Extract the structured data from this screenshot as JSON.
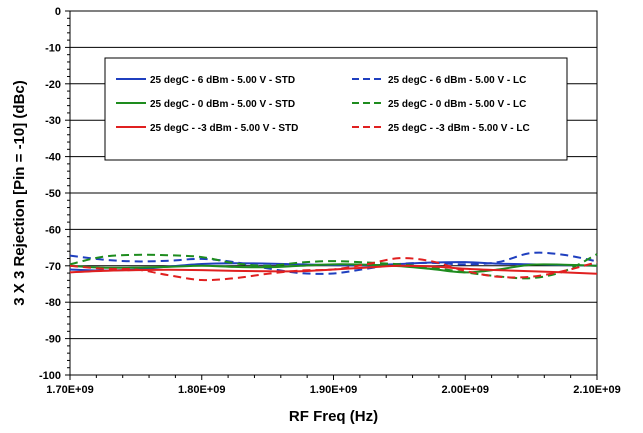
{
  "chart_data": {
    "type": "line",
    "title": "",
    "xlabel": "RF Freq (Hz)",
    "ylabel": "3 X 3 Rejection [Pin = -10] (dBc)",
    "xlim": [
      1700000000,
      2100000000
    ],
    "ylim": [
      -100,
      0
    ],
    "x_ticks": [
      1700000000,
      1800000000,
      1900000000,
      2000000000,
      2100000000
    ],
    "x_tick_labels": [
      "1.70E+09",
      "1.80E+09",
      "1.90E+09",
      "2.00E+09",
      "2.10E+09"
    ],
    "y_ticks": [
      0,
      -10,
      -20,
      -30,
      -40,
      -50,
      -60,
      -70,
      -80,
      -90,
      -100
    ],
    "y_tick_labels": [
      "0",
      "-10",
      "-20",
      "-30",
      "-40",
      "-50",
      "-60",
      "-70",
      "-80",
      "-90",
      "-100"
    ],
    "grid": "horizontal",
    "legend_position": "top",
    "x": [
      1700000000,
      1725000000,
      1750000000,
      1775000000,
      1800000000,
      1825000000,
      1850000000,
      1875000000,
      1900000000,
      1925000000,
      1950000000,
      1975000000,
      2000000000,
      2025000000,
      2050000000,
      2075000000,
      2100000000
    ],
    "series": [
      {
        "name": "25 degC - 6 dBm - 5.00 V - STD",
        "color": "#1f3fbf",
        "dash": "solid",
        "values": [
          -71.0,
          -71.3,
          -71.0,
          -70.2,
          -69.5,
          -69.3,
          -69.4,
          -69.6,
          -69.8,
          -69.9,
          -69.5,
          -69.1,
          -69.0,
          -69.4,
          -69.6,
          -69.8,
          -70.0
        ]
      },
      {
        "name": "25 degC - 6 dBm - 5.00 V - LC",
        "color": "#1f3fbf",
        "dash": "dashed",
        "values": [
          -67.2,
          -68.3,
          -68.8,
          -68.6,
          -68.1,
          -69.0,
          -70.7,
          -72.0,
          -72.1,
          -70.8,
          -69.5,
          -69.2,
          -69.6,
          -69.0,
          -66.5,
          -67.0,
          -68.8
        ]
      },
      {
        "name": "25 degC - 0 dBm - 5.00 V - STD",
        "color": "#1e8c1e",
        "dash": "solid",
        "values": [
          -70.0,
          -70.5,
          -70.5,
          -70.3,
          -70.0,
          -70.3,
          -70.4,
          -70.0,
          -69.6,
          -69.7,
          -70.1,
          -70.9,
          -71.8,
          -71.0,
          -69.7,
          -69.7,
          -70.0
        ]
      },
      {
        "name": "25 degC - 0 dBm - 5.00 V - LC",
        "color": "#1e8c1e",
        "dash": "dashed",
        "values": [
          -69.6,
          -67.5,
          -67.0,
          -67.1,
          -67.6,
          -69.3,
          -70.0,
          -69.1,
          -68.7,
          -69.1,
          -69.6,
          -70.5,
          -71.8,
          -72.9,
          -73.4,
          -71.5,
          -66.8
        ]
      },
      {
        "name": "25 degC - -3 dBm - 5.00 V - STD",
        "color": "#e02020",
        "dash": "solid",
        "values": [
          -71.8,
          -71.4,
          -71.2,
          -71.1,
          -71.2,
          -71.4,
          -71.5,
          -71.5,
          -71.0,
          -70.5,
          -70.0,
          -70.2,
          -70.8,
          -71.2,
          -71.5,
          -71.8,
          -72.2
        ]
      },
      {
        "name": "25 degC - -3 dBm - 5.00 V - LC",
        "color": "#e02020",
        "dash": "dashed",
        "values": [
          -70.0,
          -70.8,
          -71.0,
          -72.6,
          -73.9,
          -73.4,
          -72.2,
          -71.3,
          -71.0,
          -69.6,
          -67.9,
          -68.8,
          -71.4,
          -73.0,
          -73.0,
          -71.4,
          -69.0
        ]
      }
    ]
  }
}
